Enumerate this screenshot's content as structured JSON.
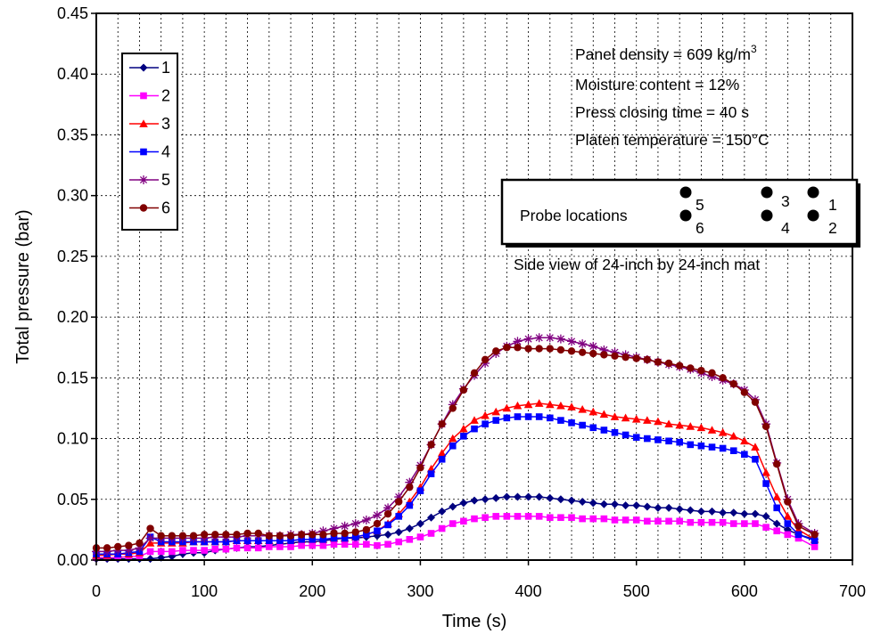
{
  "chart_data": {
    "type": "line",
    "xlabel": "Time (s)",
    "ylabel": "Total pressure   (bar)",
    "xlim": [
      0,
      700
    ],
    "ylim": [
      0,
      0.45
    ],
    "x_ticks": [
      "0",
      "100",
      "200",
      "300",
      "400",
      "500",
      "600",
      "700"
    ],
    "y_ticks": [
      "0.00",
      "0.05",
      "0.10",
      "0.15",
      "0.20",
      "0.25",
      "0.30",
      "0.35",
      "0.40",
      "0.45"
    ],
    "grid": true,
    "legend_placement": "top-left",
    "annotations": {
      "density_prefix": "Panel density = 609 kg/m",
      "density_sup": "3",
      "moisture": "Moisture content = 12%",
      "closing": "Press closing time = 40 s",
      "platen": "Platen temperature = 150°C",
      "probe_title": "Probe locations",
      "probe_numbers": [
        "5",
        "6",
        "3",
        "4",
        "1",
        "2"
      ],
      "side_view": "Side view of 24-inch by 24-inch mat"
    },
    "x": [
      0,
      10,
      20,
      30,
      40,
      50,
      60,
      70,
      80,
      90,
      100,
      110,
      120,
      130,
      140,
      150,
      160,
      170,
      180,
      190,
      200,
      210,
      220,
      230,
      240,
      250,
      260,
      270,
      280,
      290,
      300,
      310,
      320,
      330,
      340,
      350,
      360,
      370,
      380,
      390,
      400,
      410,
      420,
      430,
      440,
      450,
      460,
      470,
      480,
      490,
      500,
      510,
      520,
      530,
      540,
      550,
      560,
      570,
      580,
      590,
      600,
      610,
      620,
      630,
      640,
      650,
      665
    ],
    "series": [
      {
        "name": "1",
        "color": "#000080",
        "marker": "diamond",
        "values": [
          0.001,
          0.001,
          0.001,
          0.001,
          0.001,
          0.001,
          0.002,
          0.003,
          0.005,
          0.006,
          0.006,
          0.008,
          0.009,
          0.01,
          0.011,
          0.011,
          0.012,
          0.013,
          0.014,
          0.015,
          0.015,
          0.016,
          0.017,
          0.018,
          0.018,
          0.019,
          0.02,
          0.021,
          0.023,
          0.026,
          0.03,
          0.035,
          0.04,
          0.044,
          0.047,
          0.049,
          0.05,
          0.051,
          0.052,
          0.052,
          0.052,
          0.052,
          0.051,
          0.05,
          0.049,
          0.048,
          0.047,
          0.046,
          0.046,
          0.045,
          0.045,
          0.044,
          0.043,
          0.043,
          0.042,
          0.041,
          0.04,
          0.04,
          0.039,
          0.039,
          0.038,
          0.038,
          0.036,
          0.03,
          0.025,
          0.021,
          0.017
        ]
      },
      {
        "name": "2",
        "color": "#ff00ff",
        "marker": "square",
        "values": [
          0.002,
          0.002,
          0.002,
          0.003,
          0.003,
          0.007,
          0.007,
          0.007,
          0.008,
          0.008,
          0.008,
          0.009,
          0.009,
          0.01,
          0.01,
          0.01,
          0.011,
          0.011,
          0.011,
          0.012,
          0.012,
          0.012,
          0.013,
          0.013,
          0.013,
          0.013,
          0.012,
          0.013,
          0.015,
          0.017,
          0.019,
          0.022,
          0.026,
          0.03,
          0.032,
          0.034,
          0.035,
          0.036,
          0.036,
          0.036,
          0.036,
          0.036,
          0.035,
          0.035,
          0.035,
          0.034,
          0.034,
          0.034,
          0.033,
          0.033,
          0.033,
          0.032,
          0.032,
          0.032,
          0.032,
          0.031,
          0.031,
          0.031,
          0.031,
          0.03,
          0.03,
          0.03,
          0.027,
          0.024,
          0.021,
          0.018,
          0.011
        ]
      },
      {
        "name": "3",
        "color": "#ff0000",
        "marker": "triangle",
        "values": [
          0.004,
          0.004,
          0.005,
          0.005,
          0.006,
          0.014,
          0.014,
          0.014,
          0.014,
          0.015,
          0.015,
          0.015,
          0.015,
          0.016,
          0.016,
          0.016,
          0.016,
          0.016,
          0.016,
          0.017,
          0.017,
          0.017,
          0.018,
          0.018,
          0.019,
          0.021,
          0.024,
          0.03,
          0.038,
          0.048,
          0.06,
          0.075,
          0.088,
          0.1,
          0.108,
          0.115,
          0.119,
          0.122,
          0.125,
          0.127,
          0.128,
          0.129,
          0.128,
          0.127,
          0.126,
          0.124,
          0.122,
          0.12,
          0.118,
          0.117,
          0.116,
          0.115,
          0.114,
          0.112,
          0.111,
          0.11,
          0.109,
          0.107,
          0.105,
          0.102,
          0.098,
          0.093,
          0.072,
          0.052,
          0.036,
          0.025,
          0.017
        ]
      },
      {
        "name": "4",
        "color": "#0000ff",
        "marker": "square",
        "values": [
          0.005,
          0.005,
          0.005,
          0.006,
          0.007,
          0.019,
          0.015,
          0.015,
          0.015,
          0.015,
          0.015,
          0.015,
          0.015,
          0.016,
          0.016,
          0.016,
          0.016,
          0.016,
          0.016,
          0.017,
          0.017,
          0.017,
          0.018,
          0.018,
          0.019,
          0.021,
          0.024,
          0.029,
          0.036,
          0.045,
          0.057,
          0.071,
          0.083,
          0.094,
          0.102,
          0.108,
          0.112,
          0.115,
          0.117,
          0.118,
          0.118,
          0.118,
          0.117,
          0.115,
          0.113,
          0.111,
          0.109,
          0.107,
          0.105,
          0.103,
          0.101,
          0.1,
          0.099,
          0.098,
          0.097,
          0.095,
          0.094,
          0.093,
          0.092,
          0.09,
          0.087,
          0.083,
          0.063,
          0.043,
          0.03,
          0.021,
          0.016
        ]
      },
      {
        "name": "5",
        "color": "#800080",
        "marker": "star",
        "values": [
          0.007,
          0.007,
          0.008,
          0.008,
          0.01,
          0.018,
          0.018,
          0.018,
          0.018,
          0.018,
          0.018,
          0.019,
          0.019,
          0.019,
          0.02,
          0.02,
          0.02,
          0.02,
          0.021,
          0.021,
          0.022,
          0.024,
          0.026,
          0.028,
          0.03,
          0.033,
          0.037,
          0.043,
          0.052,
          0.064,
          0.078,
          0.095,
          0.112,
          0.128,
          0.141,
          0.152,
          0.162,
          0.17,
          0.176,
          0.18,
          0.182,
          0.183,
          0.183,
          0.182,
          0.18,
          0.178,
          0.176,
          0.173,
          0.171,
          0.169,
          0.167,
          0.165,
          0.163,
          0.161,
          0.159,
          0.157,
          0.154,
          0.151,
          0.148,
          0.145,
          0.14,
          0.132,
          0.112,
          0.08,
          0.05,
          0.03,
          0.022
        ]
      },
      {
        "name": "6",
        "color": "#800000",
        "marker": "circle",
        "values": [
          0.01,
          0.01,
          0.011,
          0.012,
          0.014,
          0.026,
          0.02,
          0.02,
          0.02,
          0.02,
          0.021,
          0.021,
          0.021,
          0.021,
          0.022,
          0.022,
          0.02,
          0.02,
          0.02,
          0.021,
          0.021,
          0.021,
          0.022,
          0.022,
          0.023,
          0.025,
          0.03,
          0.038,
          0.048,
          0.06,
          0.076,
          0.095,
          0.112,
          0.125,
          0.14,
          0.154,
          0.165,
          0.172,
          0.175,
          0.175,
          0.174,
          0.174,
          0.174,
          0.173,
          0.172,
          0.171,
          0.17,
          0.169,
          0.168,
          0.167,
          0.166,
          0.165,
          0.163,
          0.162,
          0.16,
          0.158,
          0.156,
          0.154,
          0.15,
          0.145,
          0.138,
          0.13,
          0.11,
          0.079,
          0.048,
          0.028,
          0.021
        ]
      }
    ]
  }
}
